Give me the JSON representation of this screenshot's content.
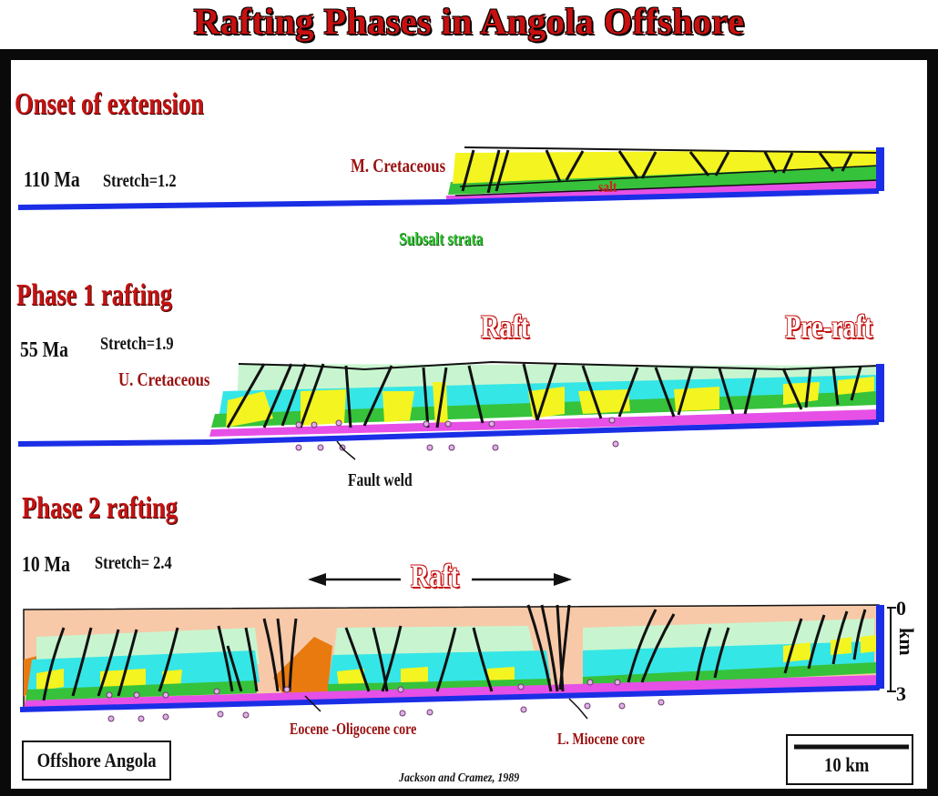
{
  "title": "Rafting Phases in Angola Offshore",
  "stages": [
    {
      "heading": "Onset of extension",
      "age": "110 Ma",
      "stretch": "Stretch=1.2",
      "labels": {
        "unit": "M. Cretaceous",
        "salt": "salt",
        "subsalt": "Subsalt strata"
      }
    },
    {
      "heading": "Phase 1 rafting",
      "age": "55 Ma",
      "stretch": "Stretch=1.9",
      "labels": {
        "unit": "U. Cretaceous",
        "raft": "Raft",
        "preraft": "Pre-raft",
        "weld": "Fault weld"
      }
    },
    {
      "heading": "Phase 2 rafting",
      "age": "10 Ma",
      "stretch": "Stretch= 2.4",
      "labels": {
        "raft": "Raft",
        "core1": "Eocene -Oligocene core",
        "core2": "L. Miocene core"
      }
    }
  ],
  "scale": {
    "top": "0",
    "bottom": "3",
    "unit": "km",
    "bar": "10 km"
  },
  "location": "Offshore Angola",
  "credit": "Jackson  and Cramez, 1989",
  "colors": {
    "salt": "#e650e6",
    "subsalt_base": "#1a2ee6",
    "yellow": "#f4f420",
    "green": "#36c23a",
    "cyan": "#35e6e6",
    "pale_green": "#c8f5cf",
    "sediment": "#f7c9a8",
    "orange": "#e87a10",
    "title_red": "#c81010"
  }
}
